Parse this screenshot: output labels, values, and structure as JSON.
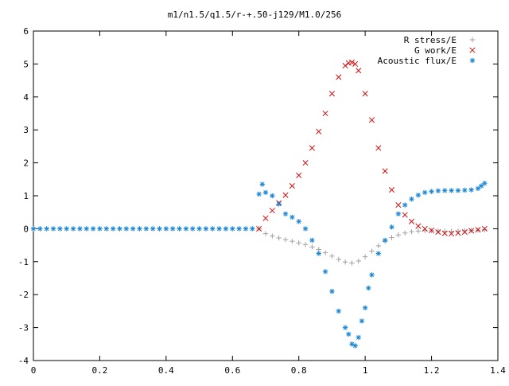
{
  "chart_data": {
    "type": "scatter",
    "title": "m1/n1.5/q1.5/r-+.50-j129/M1.0/256",
    "xlabel": "",
    "ylabel": "",
    "xlim": [
      0,
      1.4
    ],
    "ylim": [
      -4,
      6
    ],
    "x_ticks": [
      "0",
      "0.2",
      "0.4",
      "0.6",
      "0.8",
      "1",
      "1.2",
      "1.4"
    ],
    "y_ticks": [
      "-4",
      "-3",
      "-2",
      "-1",
      "0",
      "1",
      "2",
      "3",
      "4",
      "5",
      "6"
    ],
    "grid": false,
    "legend_position": "top-right",
    "series": [
      {
        "name": "R stress/E",
        "marker": "plus",
        "color": "#a0a0a0",
        "x": [
          0.68,
          0.7,
          0.72,
          0.74,
          0.76,
          0.78,
          0.8,
          0.82,
          0.84,
          0.86,
          0.88,
          0.9,
          0.92,
          0.94,
          0.96,
          0.98,
          1.0,
          1.02,
          1.04,
          1.06,
          1.08,
          1.1,
          1.12,
          1.14,
          1.16,
          1.18,
          1.2,
          1.22,
          1.24,
          1.26,
          1.28,
          1.3,
          1.32,
          1.34,
          1.36
        ],
        "y": [
          0.0,
          -0.15,
          -0.22,
          -0.28,
          -0.33,
          -0.38,
          -0.43,
          -0.48,
          -0.55,
          -0.63,
          -0.73,
          -0.83,
          -0.93,
          -1.01,
          -1.04,
          -0.98,
          -0.85,
          -0.68,
          -0.52,
          -0.38,
          -0.27,
          -0.19,
          -0.13,
          -0.09,
          -0.07,
          -0.06,
          -0.06,
          -0.07,
          -0.08,
          -0.08,
          -0.07,
          -0.06,
          -0.05,
          -0.04,
          -0.03
        ]
      },
      {
        "name": "G work/E",
        "marker": "cross",
        "color": "#d01010",
        "x": [
          0.68,
          0.7,
          0.72,
          0.74,
          0.76,
          0.78,
          0.8,
          0.82,
          0.84,
          0.86,
          0.88,
          0.9,
          0.92,
          0.94,
          0.95,
          0.96,
          0.97,
          0.98,
          1.0,
          1.02,
          1.04,
          1.06,
          1.08,
          1.1,
          1.12,
          1.14,
          1.16,
          1.18,
          1.2,
          1.22,
          1.24,
          1.26,
          1.28,
          1.3,
          1.32,
          1.34,
          1.36
        ],
        "y": [
          0.0,
          0.32,
          0.55,
          0.78,
          1.02,
          1.3,
          1.62,
          2.0,
          2.45,
          2.95,
          3.5,
          4.1,
          4.6,
          4.95,
          5.03,
          5.05,
          5.0,
          4.8,
          4.1,
          3.3,
          2.45,
          1.75,
          1.18,
          0.72,
          0.42,
          0.22,
          0.08,
          0.0,
          -0.05,
          -0.1,
          -0.14,
          -0.15,
          -0.13,
          -0.1,
          -0.06,
          -0.03,
          0.0
        ]
      },
      {
        "name": "Acoustic flux/E",
        "marker": "star",
        "color": "#1a86d6",
        "x": [
          0.0,
          0.02,
          0.04,
          0.06,
          0.08,
          0.1,
          0.12,
          0.14,
          0.16,
          0.18,
          0.2,
          0.22,
          0.24,
          0.26,
          0.28,
          0.3,
          0.32,
          0.34,
          0.36,
          0.38,
          0.4,
          0.42,
          0.44,
          0.46,
          0.48,
          0.5,
          0.52,
          0.54,
          0.56,
          0.58,
          0.6,
          0.62,
          0.64,
          0.66,
          0.68,
          0.69,
          0.7,
          0.72,
          0.74,
          0.76,
          0.78,
          0.8,
          0.82,
          0.84,
          0.86,
          0.88,
          0.9,
          0.92,
          0.94,
          0.95,
          0.96,
          0.97,
          0.98,
          0.99,
          1.0,
          1.01,
          1.02,
          1.04,
          1.06,
          1.08,
          1.1,
          1.12,
          1.14,
          1.16,
          1.18,
          1.2,
          1.22,
          1.24,
          1.26,
          1.28,
          1.3,
          1.32,
          1.34,
          1.35,
          1.36
        ],
        "y": [
          0,
          0,
          0,
          0,
          0,
          0,
          0,
          0,
          0,
          0,
          0,
          0,
          0,
          0,
          0,
          0,
          0,
          0,
          0,
          0,
          0,
          0,
          0,
          0,
          0,
          0,
          0,
          0,
          0,
          0,
          0,
          0,
          0,
          0,
          1.05,
          1.35,
          1.1,
          1.0,
          0.75,
          0.45,
          0.35,
          0.22,
          0.0,
          -0.35,
          -0.75,
          -1.3,
          -1.9,
          -2.5,
          -3.0,
          -3.2,
          -3.5,
          -3.55,
          -3.3,
          -2.8,
          -2.4,
          -1.8,
          -1.4,
          -0.75,
          -0.35,
          0.05,
          0.45,
          0.72,
          0.9,
          1.02,
          1.1,
          1.13,
          1.15,
          1.16,
          1.16,
          1.16,
          1.17,
          1.18,
          1.22,
          1.3,
          1.38
        ]
      }
    ]
  }
}
